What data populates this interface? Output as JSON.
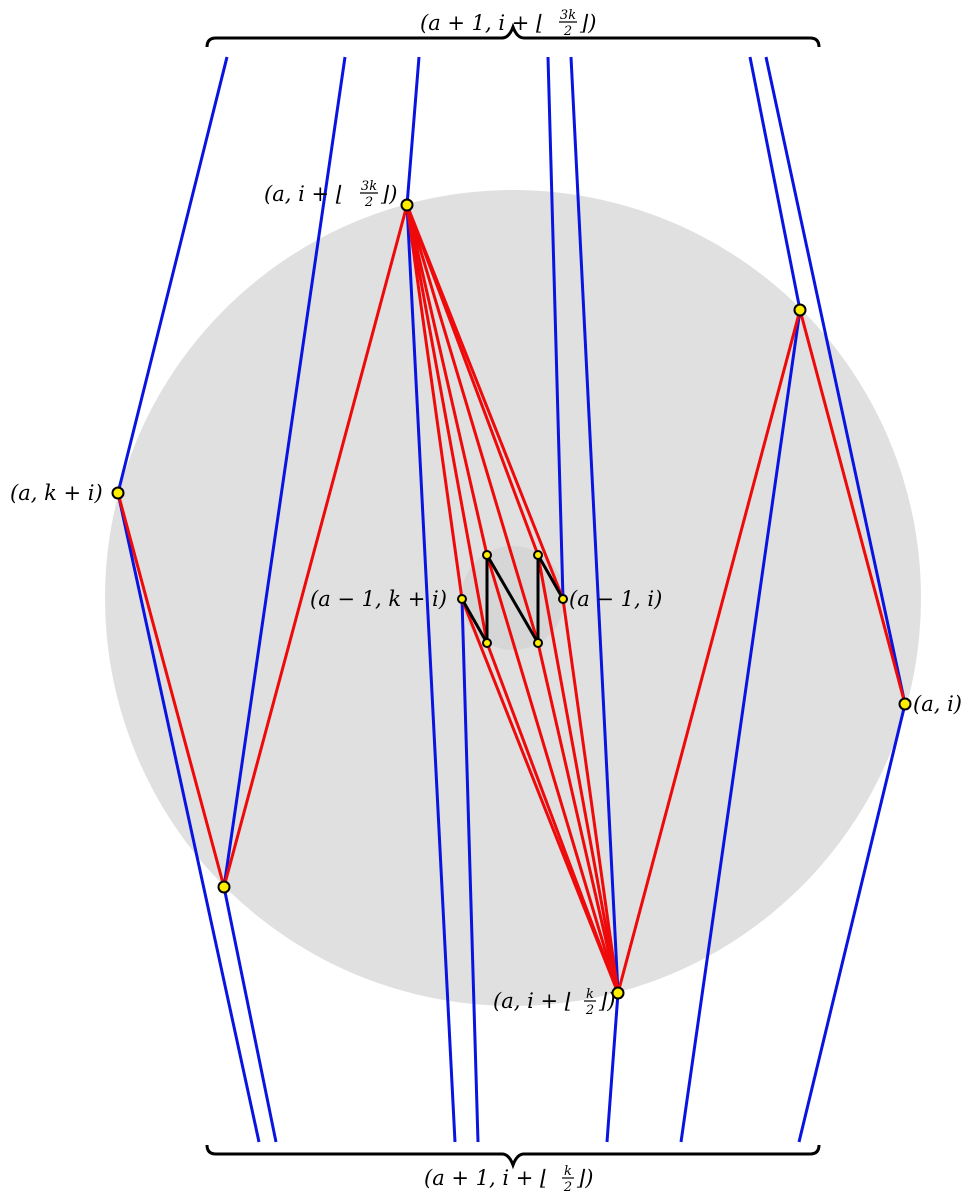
{
  "labels": {
    "top_brace_prefix": "(a + 1, i + ⌊",
    "top_brace_num": "3k",
    "top_brace_den": "2",
    "top_brace_suffix": "⌋)",
    "bottom_brace_prefix": "(a + 1, i + ⌊",
    "bottom_brace_num": "k",
    "bottom_brace_den": "2",
    "bottom_brace_suffix": "⌋)",
    "vertex_top_prefix": "(a, i + ⌊",
    "vertex_top_num": "3k",
    "vertex_top_den": "2",
    "vertex_top_suffix": "⌋)",
    "vertex_left": "(a, k + i)",
    "vertex_right": "(a, i)",
    "vertex_bottom_prefix": "(a, i + ⌊",
    "vertex_bottom_num": "k",
    "vertex_bottom_den": "2",
    "vertex_bottom_suffix": "⌋)",
    "inner_left": "(a − 1, k + i)",
    "inner_right": "(a − 1, i)"
  },
  "colors": {
    "big_disk": "#e0e0e0",
    "small_disk": "#d6d6d6",
    "blue_edge": "#0a14e0",
    "red_edge": "#ee0a0a",
    "black_edge": "#000000",
    "vertex_fill": "#ffee00",
    "vertex_stroke": "#000000"
  }
}
